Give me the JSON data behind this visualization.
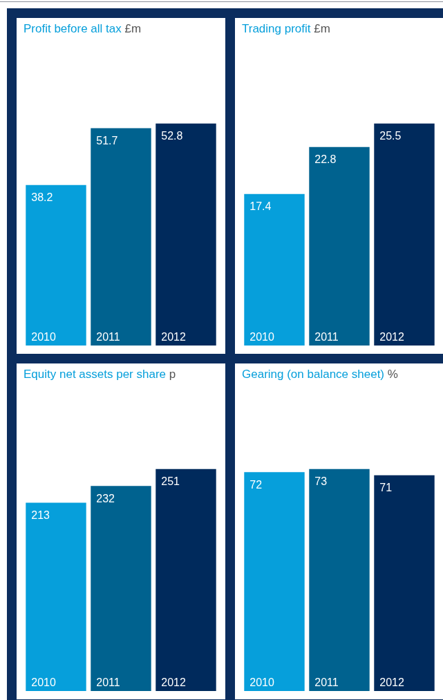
{
  "chart_data": [
    {
      "type": "bar",
      "title": "Profit before all tax",
      "subtitle": "£m",
      "categories": [
        "2010",
        "2011",
        "2012"
      ],
      "values": [
        38.2,
        51.7,
        52.8
      ],
      "colors": [
        "#069fdb",
        "#00628f",
        "#002a5c"
      ],
      "data_labels": true
    },
    {
      "type": "bar",
      "title": "Trading profit",
      "subtitle": "£m",
      "categories": [
        "2010",
        "2011",
        "2012"
      ],
      "values": [
        17.4,
        22.8,
        25.5
      ],
      "colors": [
        "#069fdb",
        "#00628f",
        "#002a5c"
      ],
      "data_labels": true
    },
    {
      "type": "bar",
      "title": "Equity net assets per share",
      "subtitle": "p",
      "categories": [
        "2010",
        "2011",
        "2012"
      ],
      "values": [
        213,
        232,
        251
      ],
      "colors": [
        "#069fdb",
        "#00628f",
        "#002a5c"
      ],
      "data_labels": true
    },
    {
      "type": "bar",
      "title": "Gearing (on balance sheet)",
      "subtitle": "%",
      "categories": [
        "2010",
        "2011",
        "2012"
      ],
      "values": [
        72,
        73,
        71
      ],
      "colors": [
        "#069fdb",
        "#00628f",
        "#002a5c"
      ],
      "data_labels": true
    }
  ]
}
